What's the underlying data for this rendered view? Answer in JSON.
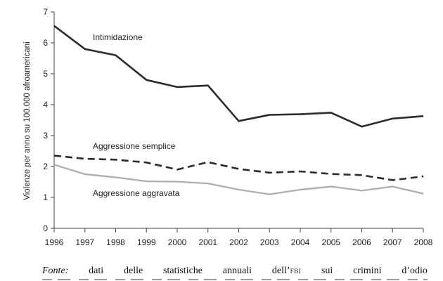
{
  "chart_data": {
    "type": "line",
    "title": "",
    "xlabel": "",
    "ylabel": "Violenze per anno su 100.000 afroamericani",
    "x": [
      "1996",
      "1997",
      "1998",
      "1999",
      "2000",
      "2001",
      "2002",
      "2003",
      "2004",
      "2005",
      "2006",
      "2007",
      "2008"
    ],
    "ylim": [
      0,
      7
    ],
    "yticks": [
      "0",
      "1",
      "2",
      "3",
      "4",
      "5",
      "6",
      "7"
    ],
    "grid": false,
    "series": [
      {
        "name": "Intimidazione",
        "style": "solid-black",
        "values": [
          6.55,
          5.8,
          5.6,
          4.8,
          4.57,
          4.62,
          3.47,
          3.67,
          3.69,
          3.74,
          3.29,
          3.55,
          3.63
        ]
      },
      {
        "name": "Aggressione semplice",
        "style": "dashed-black",
        "values": [
          2.35,
          2.25,
          2.22,
          2.13,
          1.9,
          2.14,
          1.92,
          1.8,
          1.84,
          1.76,
          1.72,
          1.56,
          1.68
        ]
      },
      {
        "name": "Aggressione aggravata",
        "style": "solid-gray",
        "values": [
          2.06,
          1.75,
          1.65,
          1.52,
          1.51,
          1.45,
          1.25,
          1.1,
          1.25,
          1.35,
          1.22,
          1.35,
          1.12
        ]
      }
    ]
  },
  "colors": {
    "dark": "#2b2b2b",
    "gray": "#b0b0b0",
    "axis": "#444444"
  },
  "caption": {
    "source_label": "Fonte:",
    "words": [
      "dati",
      "delle",
      "statistiche",
      "annuali"
    ],
    "dell_prefix": "dell’",
    "fbi": "FBI",
    "words_after": [
      "sui",
      "crimini",
      "d’odio"
    ]
  }
}
